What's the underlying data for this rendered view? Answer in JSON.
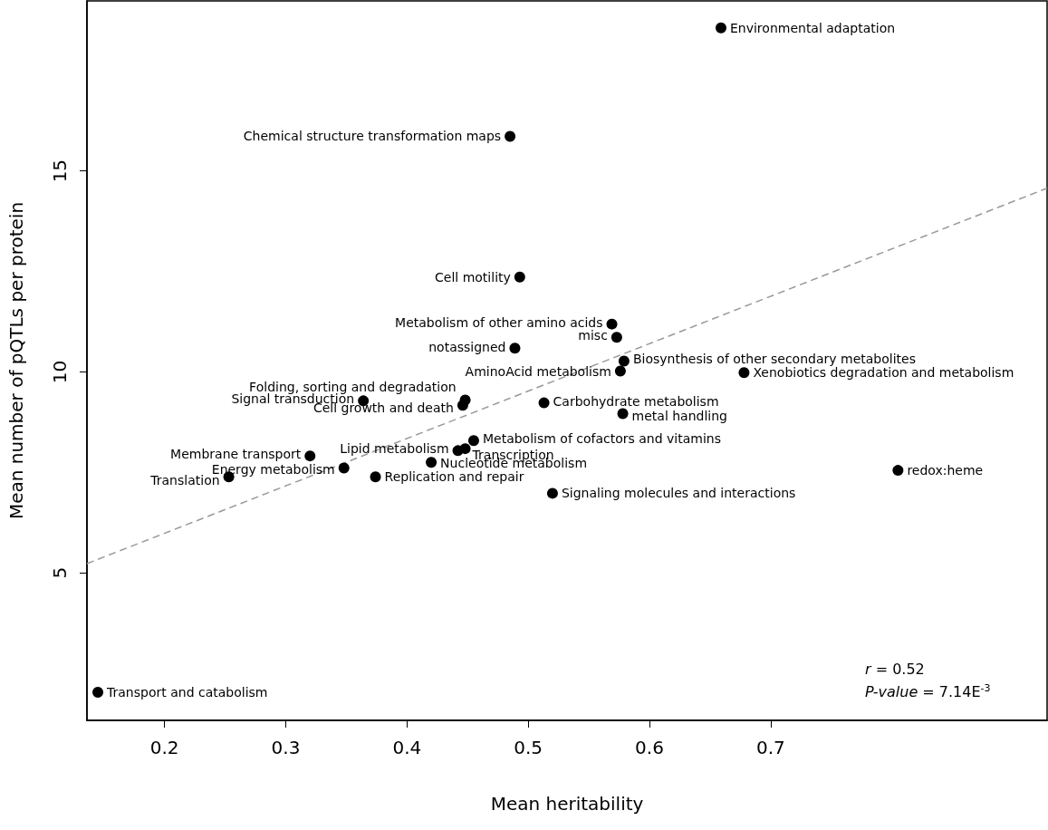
{
  "chart_data": {
    "type": "scatter",
    "xlabel": "Mean heritability",
    "ylabel": "Mean number of pQTLs per protein",
    "xlim": [
      0.136,
      0.928
    ],
    "ylim": [
      1.33,
      19.23
    ],
    "xticks": [
      0.2,
      0.3,
      0.4,
      0.5,
      0.6,
      0.7
    ],
    "yticks": [
      5,
      10,
      15
    ],
    "marker": "circle",
    "annotations": [
      "r = 0.52",
      "P-value = 7.14E$^{-3}$"
    ],
    "series": [
      {
        "color": "#000000",
        "x": [
          0.659,
          0.485,
          0.493,
          0.569,
          0.573,
          0.489,
          0.579,
          0.576,
          0.678,
          0.364,
          0.448,
          0.446,
          0.513,
          0.578,
          0.455,
          0.442,
          0.448,
          0.32,
          0.348,
          0.42,
          0.253,
          0.374,
          0.805,
          0.52,
          0.145
        ],
        "values": [
          18.56,
          15.86,
          12.36,
          11.19,
          10.86,
          10.59,
          10.27,
          10.02,
          9.98,
          9.28,
          9.3,
          9.17,
          9.23,
          8.96,
          8.29,
          8.04,
          8.09,
          7.91,
          7.61,
          7.75,
          7.39,
          7.39,
          7.55,
          6.98,
          2.03
        ],
        "value_labels": [
          "Environmental adaptation",
          "Chemical structure transformation maps",
          "Cell motility",
          "Metabolism of other amino acids",
          "misc",
          "notassigned",
          "Biosynthesis of other secondary metabolites",
          "AminoAcid metabolism",
          "Xenobiotics degradation and metabolism",
          "Signal transduction",
          "Folding, sorting and degradation",
          "Cell growth and death",
          "Carbohydrate metabolism",
          "metal handling",
          "Metabolism of cofactors and vitamins",
          "Lipid metabolism",
          "Transcription",
          "Membrane transport",
          "Energy metabolism",
          "Nucleotide metabolism",
          "Translation",
          "Replication and repair",
          "redox:heme",
          "Signaling molecules and interactions",
          "Transport and catabolism"
        ]
      },
      {
        "type": "line",
        "color": "#999999",
        "line_style": "dashed",
        "marker": "none",
        "x": [
          0.136,
          0.928
        ],
        "values": [
          5.23,
          14.57
        ]
      }
    ]
  }
}
